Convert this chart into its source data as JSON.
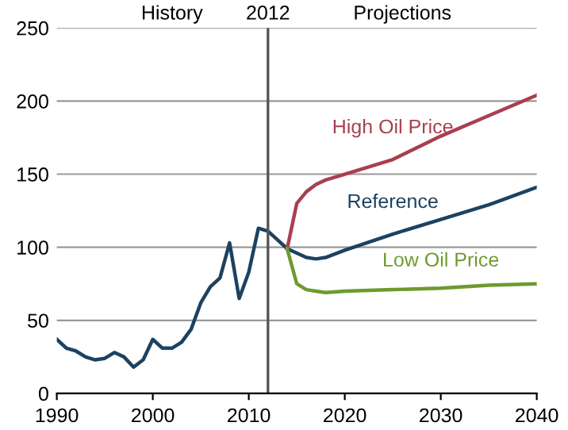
{
  "chart_data": {
    "type": "line",
    "series": [
      {
        "name": "Reference",
        "color": "#1d4260",
        "x": [
          1990,
          1991,
          1992,
          1993,
          1994,
          1995,
          1996,
          1997,
          1998,
          1999,
          2000,
          2001,
          2002,
          2003,
          2004,
          2005,
          2006,
          2007,
          2008,
          2009,
          2010,
          2011,
          2012,
          2013,
          2014,
          2015,
          2016,
          2017,
          2018,
          2020,
          2025,
          2030,
          2035,
          2040
        ],
        "values": [
          37,
          31,
          29,
          25,
          23,
          24,
          28,
          25,
          18,
          23,
          37,
          31,
          31,
          35,
          44,
          62,
          73,
          79,
          103,
          65,
          83,
          113,
          111,
          105,
          99,
          96,
          93,
          92,
          93,
          98,
          109,
          119,
          129,
          141
        ]
      },
      {
        "name": "High Oil Price",
        "color": "#a8404f",
        "x": [
          2014,
          2015,
          2016,
          2017,
          2018,
          2020,
          2025,
          2030,
          2035,
          2040
        ],
        "values": [
          99,
          130,
          138,
          143,
          146,
          150,
          160,
          176,
          190,
          204
        ]
      },
      {
        "name": "Low Oil Price",
        "color": "#6e9a2e",
        "x": [
          2014,
          2015,
          2016,
          2017,
          2018,
          2020,
          2025,
          2030,
          2035,
          2040
        ],
        "values": [
          99,
          75,
          71,
          70,
          69,
          70,
          71,
          72,
          74,
          75
        ]
      }
    ],
    "xlim": [
      1990,
      2040
    ],
    "xticks": [
      1990,
      2000,
      2010,
      2020,
      2030,
      2040
    ],
    "ylim": [
      0,
      250
    ],
    "yticks": [
      0,
      50,
      100,
      150,
      200,
      250
    ],
    "grid": "y",
    "legend": false,
    "ref_lines": [
      {
        "axis": "x",
        "value": 2012,
        "label": "2012",
        "color": "#555555"
      }
    ],
    "annotations": [
      "History",
      "Projections"
    ]
  }
}
